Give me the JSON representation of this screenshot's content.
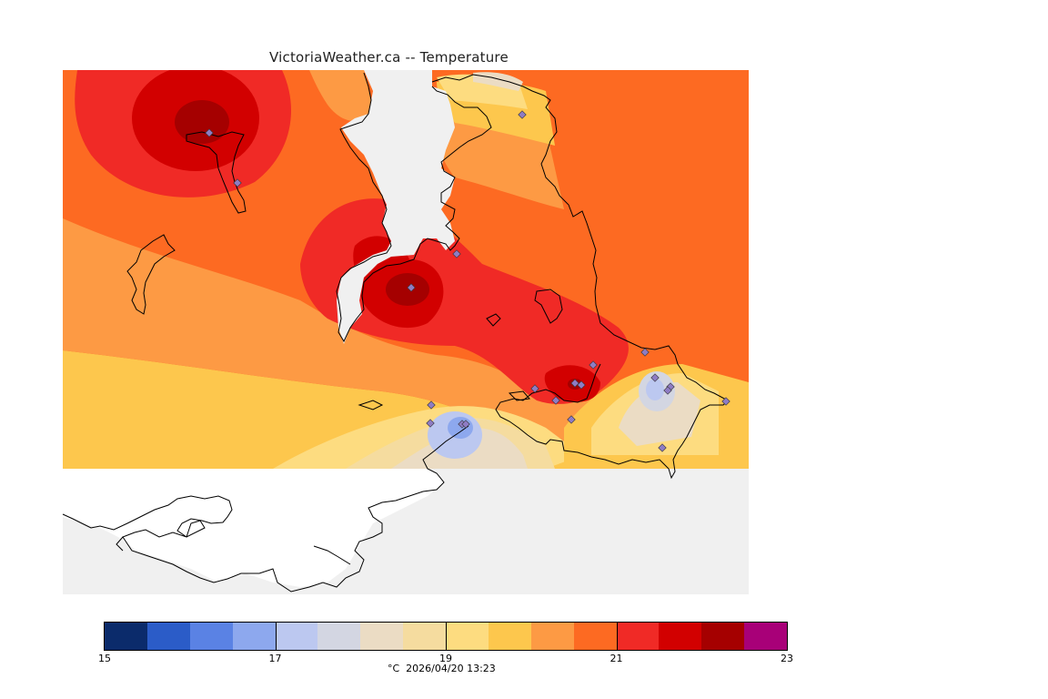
{
  "map": {
    "title": "VictoriaWeather.ca -- Temperature",
    "caption": "°C  2026/04/20 13:23",
    "station_marker_color": "#8e7cc3",
    "background_color": "#f0f0f0",
    "coastline_color": "#000000"
  },
  "legend": {
    "unit": "°C",
    "min": 15,
    "max": 23,
    "tick_labels": [
      "15",
      "17",
      "19",
      "21",
      "23"
    ],
    "bins": [
      {
        "from": 15.0,
        "to": 15.5,
        "color": "#0b2b6b"
      },
      {
        "from": 15.5,
        "to": 16.0,
        "color": "#2b5cc8"
      },
      {
        "from": 16.0,
        "to": 16.5,
        "color": "#5a82e4"
      },
      {
        "from": 16.5,
        "to": 17.0,
        "color": "#8da8ee"
      },
      {
        "from": 17.0,
        "to": 17.5,
        "color": "#bcc8f0"
      },
      {
        "from": 17.5,
        "to": 18.0,
        "color": "#d3d6e2"
      },
      {
        "from": 18.0,
        "to": 18.5,
        "color": "#ebdcc4"
      },
      {
        "from": 18.5,
        "to": 19.0,
        "color": "#f5dc9f"
      },
      {
        "from": 19.0,
        "to": 19.5,
        "color": "#fddc80"
      },
      {
        "from": 19.5,
        "to": 20.0,
        "color": "#fdc74d"
      },
      {
        "from": 20.0,
        "to": 20.5,
        "color": "#fd9a44"
      },
      {
        "from": 20.5,
        "to": 21.0,
        "color": "#fd6a22"
      },
      {
        "from": 21.0,
        "to": 21.5,
        "color": "#f02a26"
      },
      {
        "from": 21.5,
        "to": 22.0,
        "color": "#d20000"
      },
      {
        "from": 22.0,
        "to": 22.5,
        "color": "#a50000"
      },
      {
        "from": 22.5,
        "to": 23.0,
        "color": "#a80078"
      }
    ]
  }
}
